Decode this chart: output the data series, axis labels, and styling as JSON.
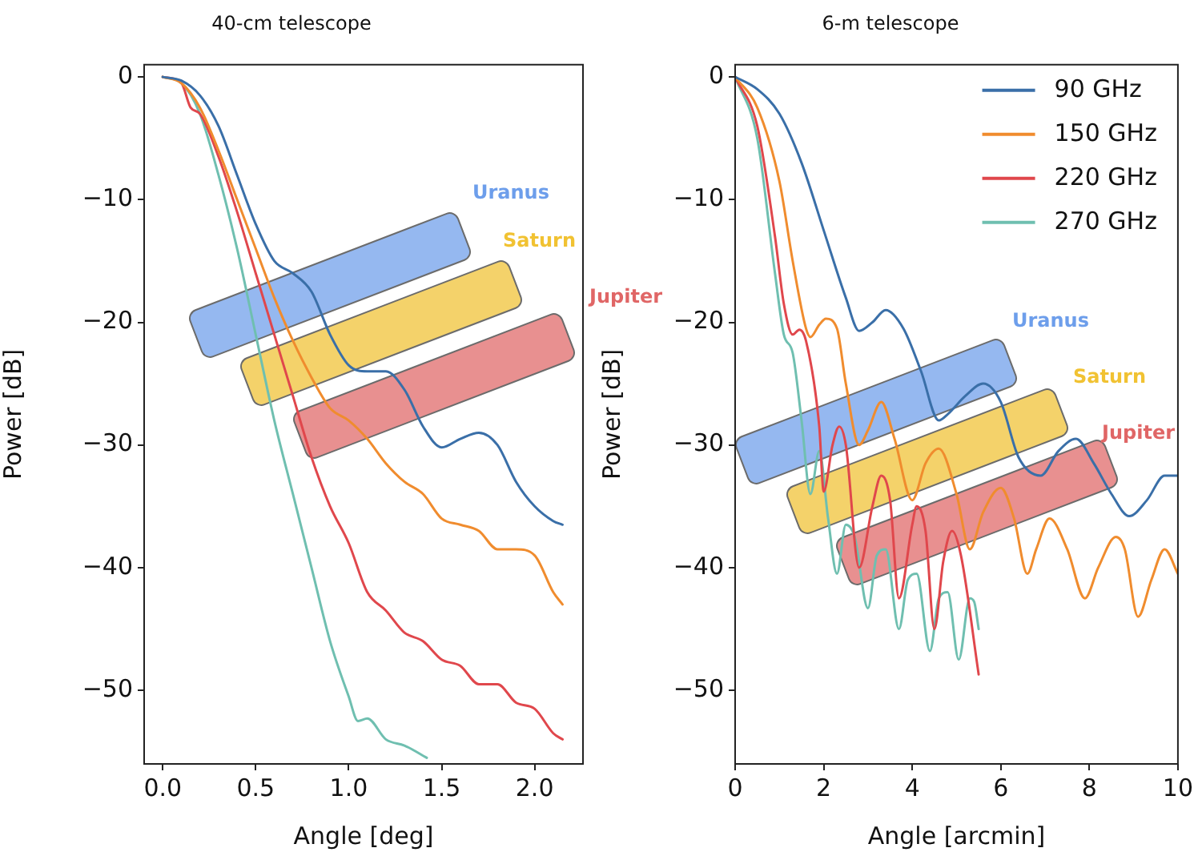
{
  "chart_data": [
    {
      "type": "line",
      "title": "40-cm telescope",
      "xlabel": "Angle [deg]",
      "ylabel": "Power [dB]",
      "xlim": [
        -0.1,
        2.26
      ],
      "xticks": [
        {
          "value": 0,
          "label": "0.0"
        },
        {
          "value": 0.5,
          "label": "0.5"
        },
        {
          "value": 1,
          "label": "1.0"
        },
        {
          "value": 1.5,
          "label": "1.5"
        },
        {
          "value": 2,
          "label": "2.0"
        }
      ],
      "ylim": [
        -56,
        1
      ],
      "yticks": [
        {
          "value": 0,
          "label": "0"
        },
        {
          "value": -10,
          "label": "−10"
        },
        {
          "value": -20,
          "label": "−20"
        },
        {
          "value": -30,
          "label": "−30"
        },
        {
          "value": -40,
          "label": "−40"
        },
        {
          "value": -50,
          "label": "−50"
        }
      ],
      "grid": false,
      "legend": false,
      "line_style": "solid",
      "marker": "none",
      "annotations": [
        "Uranus",
        "Saturn",
        "Jupiter"
      ],
      "series": [
        {
          "color": "#3a6fa8",
          "x": [
            0,
            0.1,
            0.2,
            0.3,
            0.4,
            0.5,
            0.6,
            0.7,
            0.8,
            0.9,
            1.0,
            1.1,
            1.2,
            1.3,
            1.4,
            1.5,
            1.6,
            1.7,
            1.8,
            1.9,
            2.0,
            2.1,
            2.15
          ],
          "values": [
            0,
            -0.3,
            -1.5,
            -4,
            -8,
            -12,
            -15,
            -16,
            -17.5,
            -21,
            -23.5,
            -24,
            -24,
            -25.5,
            -28.5,
            -30.2,
            -29.5,
            -29,
            -30,
            -33,
            -35,
            -36.2,
            -36.5
          ]
        },
        {
          "color": "#f08c2e",
          "x": [
            0,
            0.1,
            0.2,
            0.3,
            0.4,
            0.5,
            0.6,
            0.7,
            0.8,
            0.9,
            1.0,
            1.1,
            1.2,
            1.3,
            1.4,
            1.5,
            1.6,
            1.7,
            1.8,
            1.9,
            2.0,
            2.1,
            2.15
          ],
          "values": [
            0,
            -0.5,
            -2.5,
            -6,
            -10,
            -14,
            -18,
            -21.5,
            -24.5,
            -27,
            -28,
            -29.5,
            -31.5,
            -33,
            -34,
            -36,
            -36.5,
            -37,
            -38.5,
            -38.5,
            -39,
            -42,
            -43
          ]
        },
        {
          "color": "#e0474c",
          "x": [
            0,
            0.1,
            0.15,
            0.2,
            0.3,
            0.4,
            0.5,
            0.6,
            0.7,
            0.8,
            0.9,
            1.0,
            1.1,
            1.2,
            1.3,
            1.4,
            1.5,
            1.6,
            1.7,
            1.8,
            1.9,
            2.0,
            2.1,
            2.15
          ],
          "values": [
            0,
            -0.5,
            -2.5,
            -3,
            -6.5,
            -11,
            -16,
            -21,
            -26,
            -31,
            -35,
            -38,
            -42,
            -43.5,
            -45.3,
            -46,
            -47.5,
            -48,
            -49.5,
            -49.5,
            -51,
            -51.5,
            -53.5,
            -54
          ]
        },
        {
          "color": "#6fbfb0",
          "x": [
            0,
            0.1,
            0.2,
            0.3,
            0.4,
            0.5,
            0.6,
            0.7,
            0.8,
            0.9,
            1.0,
            1.05,
            1.1,
            1.2,
            1.3,
            1.42
          ],
          "values": [
            0,
            -0.5,
            -3,
            -8,
            -14,
            -21,
            -28,
            -34,
            -40,
            -46,
            -50.5,
            -52.5,
            -52.3,
            -54,
            -54.5,
            -55.5
          ]
        }
      ]
    },
    {
      "type": "line",
      "title": "6-m telescope",
      "xlabel": "Angle [arcmin]",
      "ylabel": "Power [dB]",
      "xlim": [
        0,
        10
      ],
      "xticks": [
        0,
        2,
        4,
        6,
        8,
        10
      ],
      "ylim": [
        -56,
        1
      ],
      "yticks": [
        {
          "value": 0,
          "label": "0"
        },
        {
          "value": -10,
          "label": "−10"
        },
        {
          "value": -20,
          "label": "−20"
        },
        {
          "value": -30,
          "label": "−30"
        },
        {
          "value": -40,
          "label": "−40"
        },
        {
          "value": -50,
          "label": "−50"
        }
      ],
      "grid": false,
      "legend": "top right",
      "line_style": "solid",
      "marker": "none",
      "annotations": [
        "Uranus",
        "Saturn",
        "Jupiter"
      ],
      "series": [
        {
          "name": "90 GHz",
          "color": "#3a6fa8",
          "x": [
            0,
            0.5,
            1,
            1.5,
            2,
            2.5,
            2.8,
            3.1,
            3.4,
            3.8,
            4.2,
            4.6,
            4.8,
            5.2,
            5.6,
            6,
            6.4,
            6.9,
            7.3,
            7.7,
            8.1,
            8.5,
            8.9,
            9.3,
            9.7,
            10
          ],
          "values": [
            0,
            -1,
            -3,
            -7,
            -12.5,
            -18,
            -20.7,
            -20,
            -19,
            -20.5,
            -24,
            -28,
            -27.5,
            -26,
            -25,
            -26.5,
            -31,
            -32.5,
            -30.5,
            -29.5,
            -31.5,
            -34,
            -35.8,
            -34.5,
            -32.5,
            -32.5
          ]
        },
        {
          "name": "150 GHz",
          "color": "#f08c2e",
          "x": [
            0,
            0.5,
            1,
            1.3,
            1.6,
            1.7,
            1.9,
            2.05,
            2.3,
            2.5,
            2.8,
            3,
            3.3,
            3.6,
            4,
            4.3,
            4.6,
            5,
            5.3,
            5.6,
            6,
            6.3,
            6.6,
            6.8,
            7.1,
            7.5,
            7.9,
            8.2,
            8.6,
            8.8,
            9.1,
            9.4,
            9.7,
            10
          ],
          "values": [
            0,
            -2.5,
            -8.5,
            -15,
            -20.5,
            -21.2,
            -20.2,
            -19.7,
            -20.5,
            -25,
            -30,
            -28.8,
            -26.5,
            -29.5,
            -34.5,
            -31.5,
            -30.3,
            -34,
            -38.5,
            -35.5,
            -33.5,
            -36,
            -40.5,
            -38.5,
            -36,
            -38.5,
            -42.5,
            -40,
            -37.5,
            -38.5,
            -44,
            -41,
            -38.5,
            -40.5
          ]
        },
        {
          "name": "220 GHz",
          "color": "#e0474c",
          "x": [
            0,
            0.5,
            0.9,
            1.1,
            1.3,
            1.45,
            1.6,
            1.9,
            2.0,
            2.2,
            2.35,
            2.5,
            2.8,
            3.1,
            3.3,
            3.5,
            3.7,
            4,
            4.1,
            4.3,
            4.5,
            4.7,
            4.9,
            5.1,
            5.5
          ],
          "values": [
            0,
            -4,
            -13,
            -18.5,
            -21,
            -20.6,
            -21.5,
            -28.5,
            -33.8,
            -30,
            -28.5,
            -30,
            -40,
            -35,
            -32.5,
            -34.5,
            -42.5,
            -36.5,
            -35,
            -37,
            -45,
            -39.5,
            -37,
            -39,
            -48.7
          ]
        },
        {
          "name": "270 GHz",
          "color": "#6fbfb0",
          "x": [
            0,
            0.5,
            0.9,
            1.1,
            1.3,
            1.5,
            1.7,
            1.9,
            2.1,
            2.3,
            2.5,
            2.7,
            3.0,
            3.2,
            3.4,
            3.7,
            3.9,
            4.1,
            4.4,
            4.6,
            4.8,
            5.05,
            5.3,
            5.4,
            5.5
          ],
          "values": [
            0,
            -5,
            -16,
            -21,
            -22.5,
            -28,
            -34,
            -30.5,
            -36,
            -40.5,
            -36.5,
            -37.5,
            -43.3,
            -39,
            -38.5,
            -45,
            -41,
            -40.5,
            -46.8,
            -42.5,
            -42,
            -47.5,
            -42.5,
            -42.8,
            -45
          ]
        }
      ]
    }
  ]
}
